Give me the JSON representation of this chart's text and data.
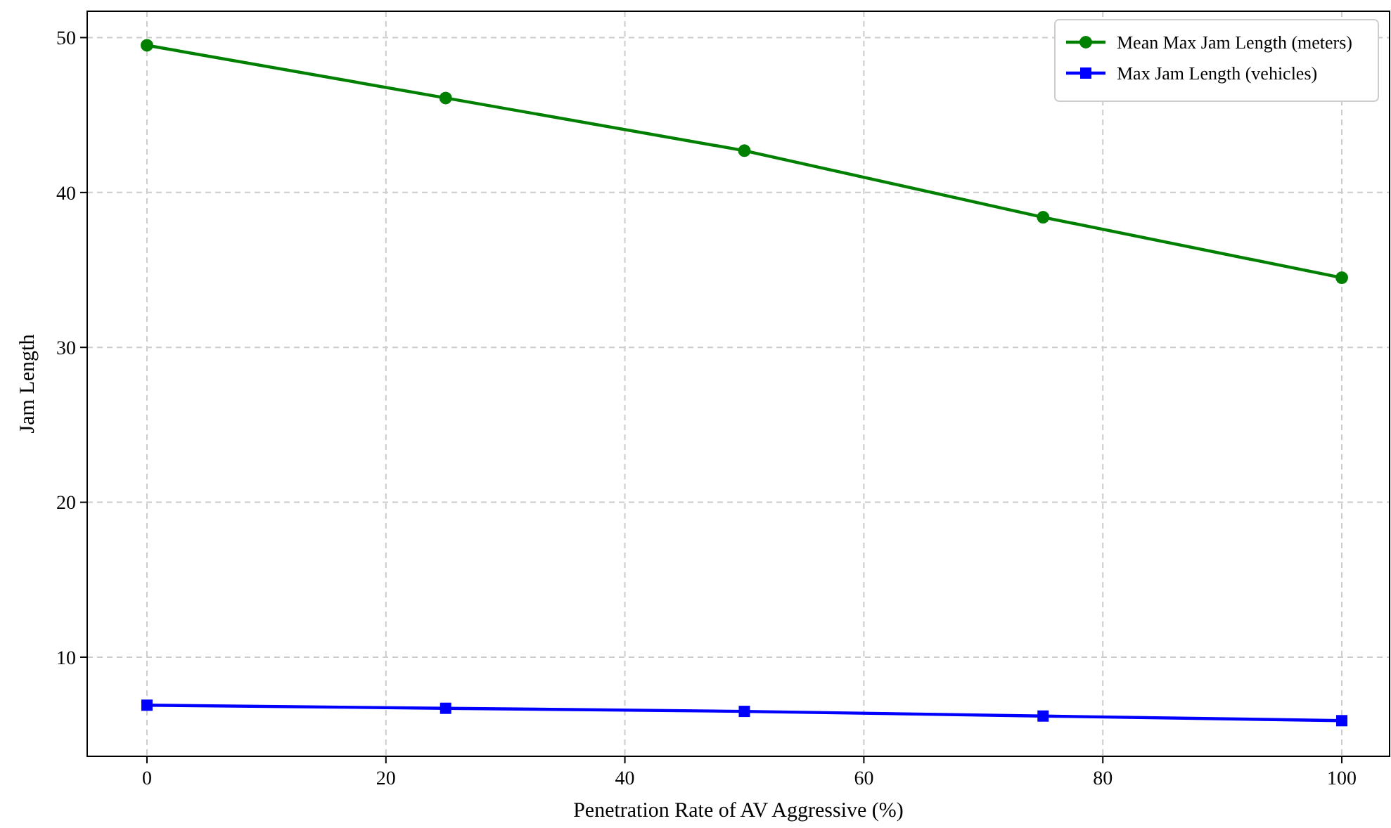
{
  "chart_data": {
    "type": "line",
    "xlabel": "Penetration Rate of AV Aggressive (%)",
    "ylabel": "Jam Length",
    "x": [
      0,
      25,
      50,
      75,
      100
    ],
    "series": [
      {
        "name": "Mean Max Jam Length (meters)",
        "color": "#008000",
        "marker": "circle",
        "values": [
          49.5,
          46.1,
          42.7,
          38.4,
          34.5
        ]
      },
      {
        "name": "Max Jam Length (vehicles)",
        "color": "#0000ff",
        "marker": "square",
        "values": [
          6.9,
          6.7,
          6.5,
          6.2,
          5.9
        ]
      }
    ],
    "xlim": [
      -5,
      104
    ],
    "ylim": [
      3.6,
      51.7
    ],
    "xticks": [
      0,
      20,
      40,
      60,
      80,
      100
    ],
    "yticks": [
      10,
      20,
      30,
      40,
      50
    ],
    "grid": true,
    "legend": "top right",
    "line_style": "solid"
  }
}
